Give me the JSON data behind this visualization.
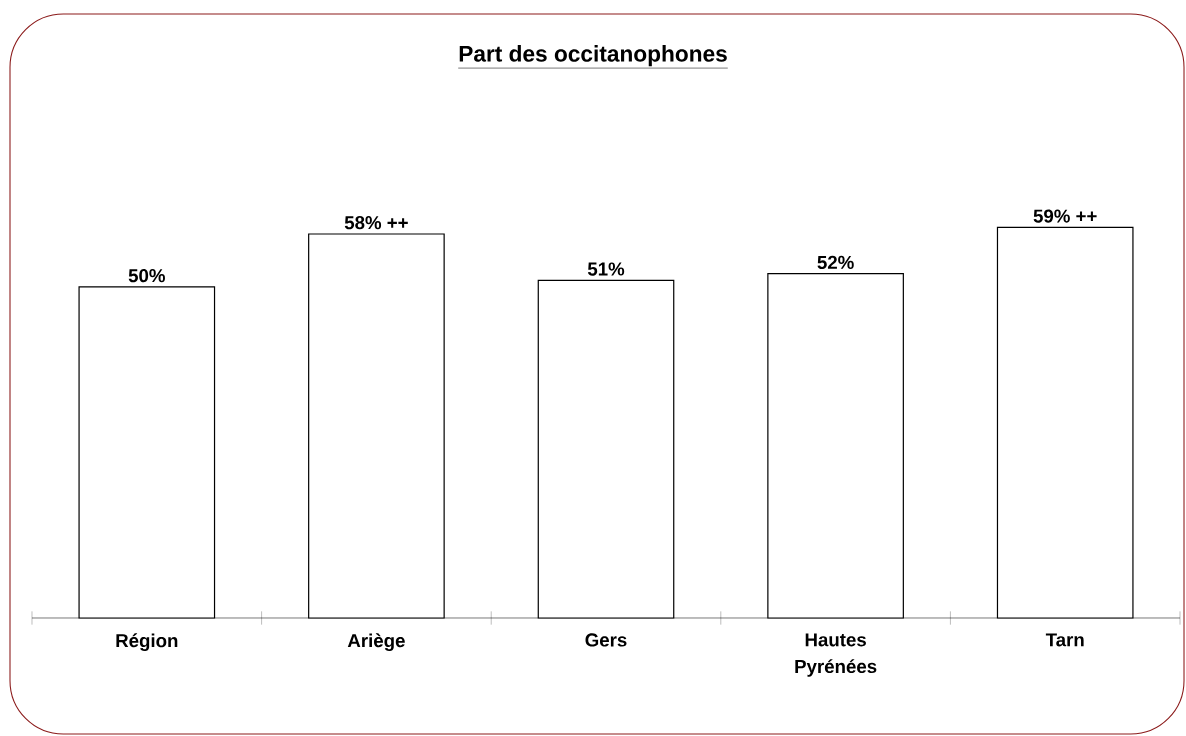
{
  "chart_data": {
    "type": "bar",
    "title": "Part des occitanophones",
    "categories": [
      "Région",
      "Ariège",
      "Gers",
      "Hautes Pyrénées",
      "Tarn"
    ],
    "values": [
      50,
      58,
      51,
      52,
      59
    ],
    "value_labels": [
      "50%",
      "58% ++",
      "51%",
      "52%",
      "59% ++"
    ],
    "colors": [
      "#ffffff",
      "#ffffff",
      "#ffffff",
      "#ffffff",
      "#ffffff"
    ]
  }
}
